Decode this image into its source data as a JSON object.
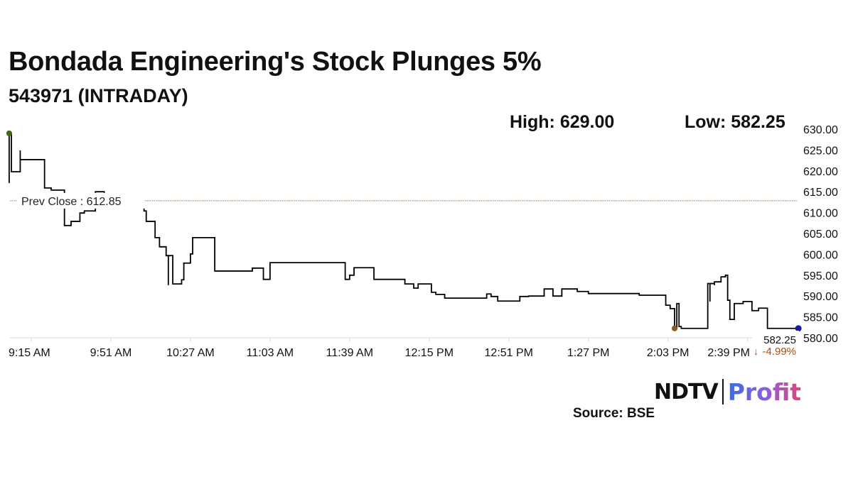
{
  "header": {
    "title": "Bondada Engineering's Stock Plunges 5%",
    "subtitle": "543971 (INTRADAY)",
    "high_label": "High: 629.00",
    "low_label": "Low: 582.25"
  },
  "chart_data": {
    "type": "line",
    "step": true,
    "title": "Bondada Engineering's Stock Plunges 5%",
    "subtitle": "543971 (INTRADAY)",
    "xlabel": "",
    "ylabel": "",
    "ylim": [
      580,
      630
    ],
    "y_ticks": [
      "630.00",
      "625.00",
      "620.00",
      "615.00",
      "610.00",
      "605.00",
      "600.00",
      "595.00",
      "590.00",
      "585.00",
      "580.00"
    ],
    "x_ticks": [
      {
        "time": "09:15",
        "label": "9:15 AM"
      },
      {
        "time": "09:51",
        "label": "9:51 AM"
      },
      {
        "time": "10:27",
        "label": "10:27 AM"
      },
      {
        "time": "11:03",
        "label": "11:03 AM"
      },
      {
        "time": "11:39",
        "label": "11:39 AM"
      },
      {
        "time": "12:15",
        "label": "12:15 PM"
      },
      {
        "time": "12:51",
        "label": "12:51 PM"
      },
      {
        "time": "13:27",
        "label": "1:27 PM"
      },
      {
        "time": "14:03",
        "label": "2:03 PM"
      },
      {
        "time": "14:39",
        "label": "2:39 PM"
      }
    ],
    "grid": false,
    "prev_close": {
      "label": "Prev Close : 612.85",
      "value": 612.85,
      "color": "#a07a5a"
    },
    "last": {
      "price": "582.25",
      "change": "-4.99%",
      "arrow": "↓",
      "change_color": "#b5480f"
    },
    "line_color": "#000000",
    "marker_colors": {
      "high": "#3d6b12",
      "low": "#8a5a1a",
      "last": "#1a1aa8"
    },
    "series": [
      {
        "points": [
          [
            "09:05",
            617.1
          ],
          [
            "09:05",
            629.0
          ],
          [
            "09:06",
            619.8
          ],
          [
            "09:10",
            624.9
          ],
          [
            "09:10",
            622.7
          ],
          [
            "09:21",
            615.9
          ],
          [
            "09:24",
            615.4
          ],
          [
            "09:30",
            606.9
          ],
          [
            "09:33",
            607.9
          ],
          [
            "09:37",
            609.9
          ],
          [
            "09:39",
            610.4
          ],
          [
            "09:44",
            615.0
          ],
          [
            "09:48",
            612.0
          ],
          [
            "10:06",
            610.4
          ],
          [
            "10:07",
            607.9
          ],
          [
            "10:11",
            604.0
          ],
          [
            "10:13",
            601.8
          ],
          [
            "10:16",
            599.7
          ],
          [
            "10:17",
            592.6
          ],
          [
            "10:17",
            599.7
          ],
          [
            "10:19",
            592.9
          ],
          [
            "10:23",
            593.9
          ],
          [
            "10:24",
            597.9
          ],
          [
            "10:27",
            600.1
          ],
          [
            "10:28",
            604.0
          ],
          [
            "10:38",
            596.0
          ],
          [
            "10:55",
            596.7
          ],
          [
            "11:00",
            594.0
          ],
          [
            "11:03",
            598.0
          ],
          [
            "11:37",
            594.0
          ],
          [
            "11:39",
            595.0
          ],
          [
            "11:41",
            596.8
          ],
          [
            "11:50",
            594.0
          ],
          [
            "12:04",
            592.9
          ],
          [
            "12:08",
            591.9
          ],
          [
            "12:10",
            592.9
          ],
          [
            "12:16",
            590.9
          ],
          [
            "12:18",
            590.4
          ],
          [
            "12:22",
            589.5
          ],
          [
            "12:41",
            590.5
          ],
          [
            "12:43",
            589.9
          ],
          [
            "12:46",
            588.8
          ],
          [
            "12:56",
            589.9
          ],
          [
            "13:00",
            590.0
          ],
          [
            "13:07",
            591.7
          ],
          [
            "13:11",
            590.0
          ],
          [
            "13:15",
            591.7
          ],
          [
            "13:22",
            591.1
          ],
          [
            "13:27",
            590.6
          ],
          [
            "13:50",
            590.2
          ],
          [
            "14:02",
            587.8
          ],
          [
            "14:04",
            587.0
          ],
          [
            "14:06",
            582.25
          ],
          [
            "14:07",
            588.2
          ],
          [
            "14:08",
            582.7
          ],
          [
            "14:09",
            582.25
          ],
          [
            "14:21",
            593.0
          ],
          [
            "14:22",
            588.7
          ],
          [
            "14:22",
            593.0
          ],
          [
            "14:24",
            592.6
          ],
          [
            "14:24",
            593.4
          ],
          [
            "14:27",
            594.6
          ],
          [
            "14:29",
            595.0
          ],
          [
            "14:30",
            589.0
          ],
          [
            "14:31",
            584.4
          ],
          [
            "14:33",
            588.2
          ],
          [
            "14:37",
            588.7
          ],
          [
            "14:41",
            586.5
          ],
          [
            "14:44",
            587.1
          ],
          [
            "14:48",
            582.25
          ],
          [
            "15:02",
            582.25
          ]
        ]
      }
    ]
  },
  "footer": {
    "logo_ndtv": "NDTV",
    "logo_profit": "Profit",
    "source": "Source: BSE"
  }
}
